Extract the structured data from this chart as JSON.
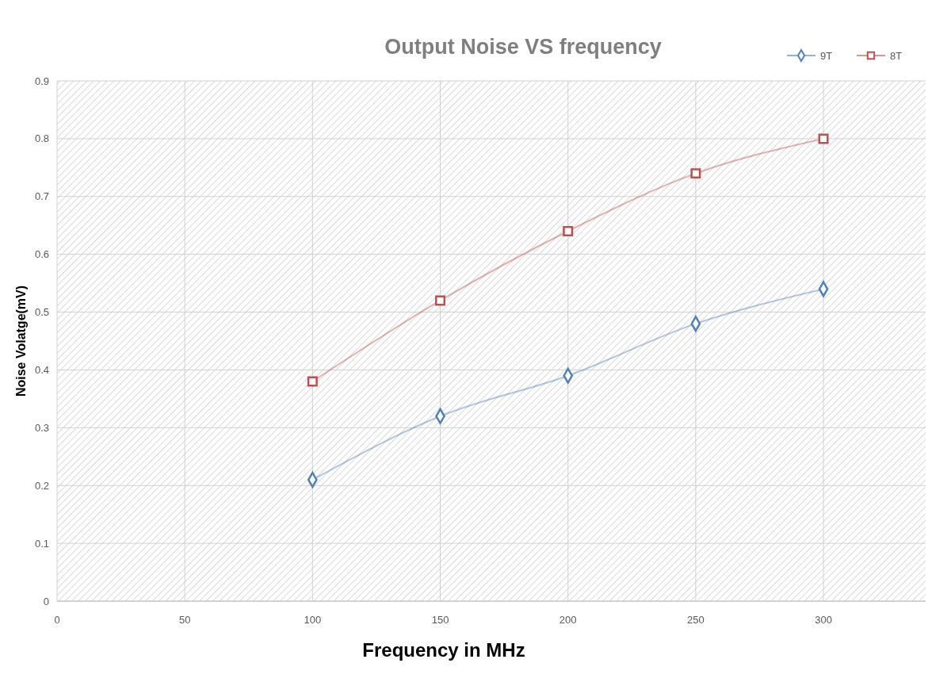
{
  "chart_data": {
    "type": "line",
    "title": "Output Noise VS frequency",
    "xlabel": "Frequency in MHz",
    "ylabel": "Noise Volatge(mV)",
    "x": [
      100,
      150,
      200,
      250,
      300
    ],
    "series": [
      {
        "name": "9T",
        "color": "#4f81bd",
        "marker": "diamond",
        "values": [
          0.21,
          0.32,
          0.39,
          0.48,
          0.54
        ]
      },
      {
        "name": "8T",
        "color": "#c0504d",
        "marker": "square",
        "values": [
          0.38,
          0.52,
          0.64,
          0.74,
          0.8
        ]
      }
    ],
    "xlim": [
      0,
      340
    ],
    "xticks": [
      0,
      50,
      100,
      150,
      200,
      250,
      300
    ],
    "ylim": [
      0,
      0.9
    ],
    "yticks": [
      0,
      0.1,
      0.2,
      0.3,
      0.4,
      0.5,
      0.6,
      0.7,
      0.8,
      0.9
    ],
    "grid": true,
    "legend": "top right"
  }
}
